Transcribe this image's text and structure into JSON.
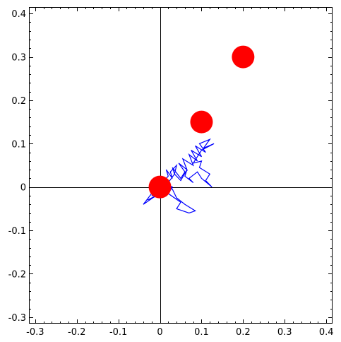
{
  "chart_data": {
    "type": "scatter",
    "title": "",
    "xlabel": "",
    "ylabel": "",
    "xlim": [
      -0.315,
      0.415
    ],
    "ylim": [
      -0.315,
      0.415
    ],
    "grid": false,
    "x_ticks": [
      {
        "value": -0.3,
        "label": "-0.3"
      },
      {
        "value": -0.2,
        "label": "-0.2"
      },
      {
        "value": -0.1,
        "label": "-0.1"
      },
      {
        "value": 0,
        "label": "0"
      },
      {
        "value": 0.1,
        "label": "0.1"
      },
      {
        "value": 0.2,
        "label": "0.2"
      },
      {
        "value": 0.3,
        "label": "0.3"
      },
      {
        "value": 0.4,
        "label": "0.4"
      }
    ],
    "y_ticks": [
      {
        "value": -0.3,
        "label": "-0.3"
      },
      {
        "value": -0.2,
        "label": "-0.2"
      },
      {
        "value": -0.1,
        "label": "-0.1"
      },
      {
        "value": 0,
        "label": "0"
      },
      {
        "value": 0.1,
        "label": "0.1"
      },
      {
        "value": 0.2,
        "label": "0.2"
      },
      {
        "value": 0.3,
        "label": "0.3"
      },
      {
        "value": 0.4,
        "label": "0.4"
      }
    ],
    "series": [
      {
        "kind": "line",
        "color": "#0000ff",
        "x": [
          0.0,
          -0.01,
          0.01,
          -0.02,
          0.005,
          -0.03,
          -0.01,
          -0.04,
          -0.02,
          0.0,
          -0.02,
          0.01,
          0.0,
          0.03,
          0.02,
          0.05,
          0.04,
          0.07,
          0.085,
          0.06,
          0.04,
          0.03,
          0.02,
          0.035,
          0.03,
          0.05,
          0.06,
          0.045,
          0.065,
          0.055,
          0.08,
          0.07,
          0.09,
          0.075,
          0.1,
          0.085,
          0.11,
          0.095,
          0.12,
          0.105,
          0.13,
          0.1,
          0.09,
          0.08,
          0.1,
          0.095,
          0.12,
          0.11,
          0.125,
          0.1,
          0.09,
          0.07,
          0.08,
          0.06,
          0.065,
          0.05,
          0.035,
          0.04,
          0.025,
          0.03,
          0.015,
          0.02,
          0.005,
          0.0
        ],
        "y": [
          0.0,
          -0.01,
          -0.005,
          -0.02,
          -0.015,
          -0.03,
          -0.02,
          -0.04,
          -0.015,
          -0.025,
          0.005,
          -0.005,
          0.015,
          0.0,
          -0.015,
          -0.035,
          -0.05,
          -0.06,
          -0.055,
          -0.04,
          -0.025,
          -0.005,
          0.01,
          0.03,
          0.045,
          0.02,
          0.035,
          0.055,
          0.04,
          0.065,
          0.05,
          0.075,
          0.06,
          0.085,
          0.07,
          0.095,
          0.08,
          0.1,
          0.11,
          0.09,
          0.1,
          0.085,
          0.07,
          0.055,
          0.06,
          0.045,
          0.03,
          0.015,
          0.0,
          0.02,
          0.035,
          0.02,
          0.01,
          0.025,
          0.04,
          0.015,
          0.03,
          0.05,
          0.035,
          0.02,
          0.04,
          0.025,
          0.01,
          0.0
        ]
      },
      {
        "kind": "points",
        "color": "#ff0000",
        "x": [
          0.0,
          0.1,
          0.2
        ],
        "y": [
          0.0,
          0.15,
          0.3
        ]
      }
    ]
  }
}
